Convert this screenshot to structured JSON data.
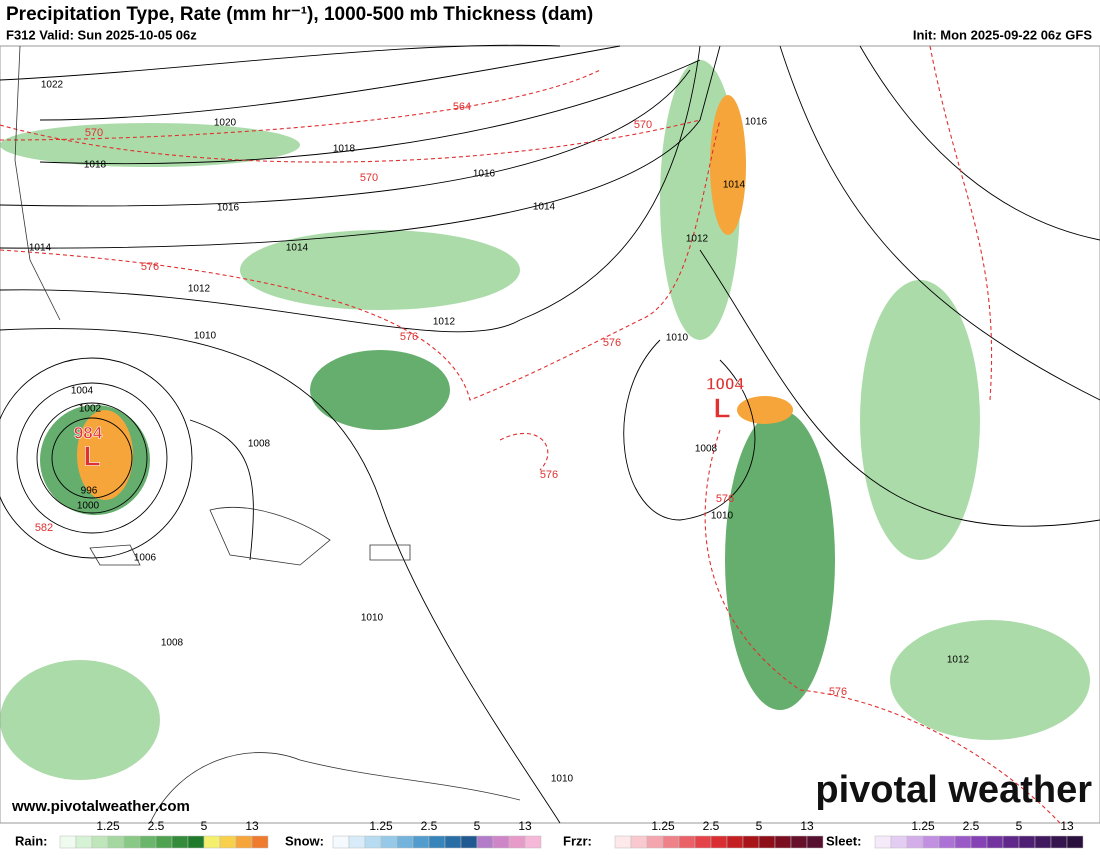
{
  "header": {
    "title": "Precipitation Type, Rate (mm hr⁻¹), 1000-500 mb Thickness (dam)",
    "valid": "F312 Valid: Sun 2025-10-05 06z",
    "init": "Init: Mon 2025-09-22 06z GFS"
  },
  "map": {
    "isobar_labels": [
      "1022",
      "1020",
      "1018",
      "1018",
      "1016",
      "1016",
      "1014",
      "1014",
      "1014",
      "1012",
      "1012",
      "1010",
      "1010",
      "1008",
      "1008",
      "1010",
      "1006",
      "1008",
      "1010",
      "1010",
      "1016",
      "1014",
      "1012",
      "1012",
      "1004",
      "1002",
      "1000",
      "996"
    ],
    "thickness_labels": [
      "564",
      "570",
      "570",
      "570",
      "576",
      "576",
      "576",
      "576",
      "576",
      "576",
      "582"
    ],
    "lows": [
      {
        "pressure": "984",
        "symbol": "L"
      },
      {
        "pressure": "1004",
        "symbol": "L"
      }
    ]
  },
  "legend": {
    "scale_labels": [
      "1.25",
      "2.5",
      "5",
      "13"
    ],
    "types": [
      {
        "label": "Rain:",
        "colors": [
          "#f0fbf0",
          "#d6f2d4",
          "#bfe6bb",
          "#a4d8a0",
          "#88c985",
          "#6ab66a",
          "#4ea250",
          "#348c3b",
          "#1f7a2c",
          "#f4f06e",
          "#f8d04c",
          "#f5a53a",
          "#ef7c2e"
        ]
      },
      {
        "label": "Snow:",
        "colors": [
          "#f4fafe",
          "#d7ecf8",
          "#b7dcf1",
          "#96c9e8",
          "#73b3dc",
          "#529dcd",
          "#3785bb",
          "#2a6ea6",
          "#215a90",
          "#b27cc9",
          "#cf86c8",
          "#e79bc9",
          "#f5b8d8"
        ]
      },
      {
        "label": "Frzr:",
        "colors": [
          "#fde8ea",
          "#f9c9cf",
          "#f4a5ae",
          "#ef8289",
          "#ea6167",
          "#e4434a",
          "#d92e32",
          "#c41f22",
          "#a91418",
          "#8f0f19",
          "#7a0f21",
          "#66102a",
          "#561030"
        ]
      },
      {
        "label": "Sleet:",
        "colors": [
          "#f4eafa",
          "#e4cdf2",
          "#d3aee9",
          "#c190e0",
          "#ad72d5",
          "#9959c7",
          "#8643b5",
          "#7334a0",
          "#60288a",
          "#4f1f74",
          "#41195f",
          "#35154d",
          "#2a103c"
        ]
      }
    ]
  },
  "footer": {
    "url": "www.pivotalweather.com",
    "brand": "pivotal weather"
  }
}
